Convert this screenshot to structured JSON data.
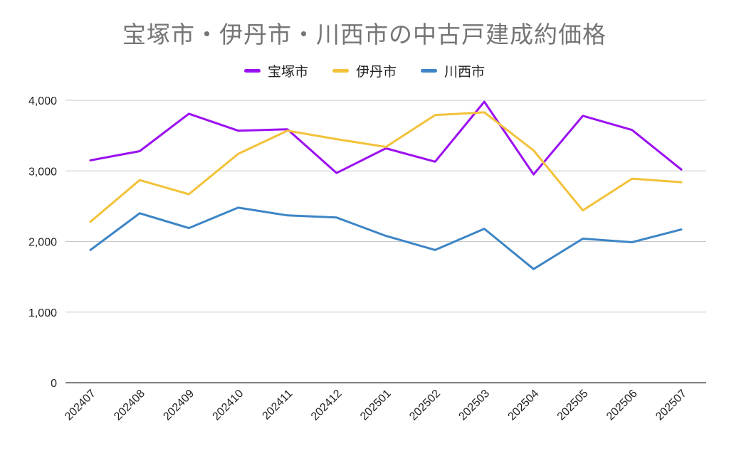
{
  "chart_data": {
    "type": "line",
    "title": "宝塚市・伊丹市・川西市の中古戸建成約価格",
    "xlabel": "",
    "ylabel": "",
    "categories": [
      "202407",
      "202408",
      "202409",
      "202410",
      "202411",
      "202412",
      "202501",
      "202502",
      "202503",
      "202504",
      "202505",
      "202506",
      "202507"
    ],
    "series": [
      {
        "name": "宝塚市",
        "color": "#9b10f0",
        "values": [
          3150,
          3280,
          3810,
          3570,
          3590,
          2970,
          3320,
          3130,
          3980,
          2950,
          3780,
          3580,
          3020
        ]
      },
      {
        "name": "伊丹市",
        "color": "#f2c23a",
        "values": [
          2280,
          2870,
          2670,
          3240,
          3570,
          3450,
          3340,
          3790,
          3830,
          3290,
          2440,
          2890,
          2840
        ]
      },
      {
        "name": "川西市",
        "color": "#3d85c6",
        "values": [
          1880,
          2400,
          2190,
          2480,
          2370,
          2340,
          2080,
          1880,
          2180,
          1610,
          2040,
          1990,
          2170
        ]
      }
    ],
    "ylim": [
      0,
      4000
    ],
    "yticks": [
      0,
      1000,
      2000,
      3000,
      4000
    ],
    "ytick_labels": [
      "0",
      "1,000",
      "2,000",
      "3,000",
      "4,000"
    ],
    "grid": true,
    "legend_position": "top-center"
  }
}
